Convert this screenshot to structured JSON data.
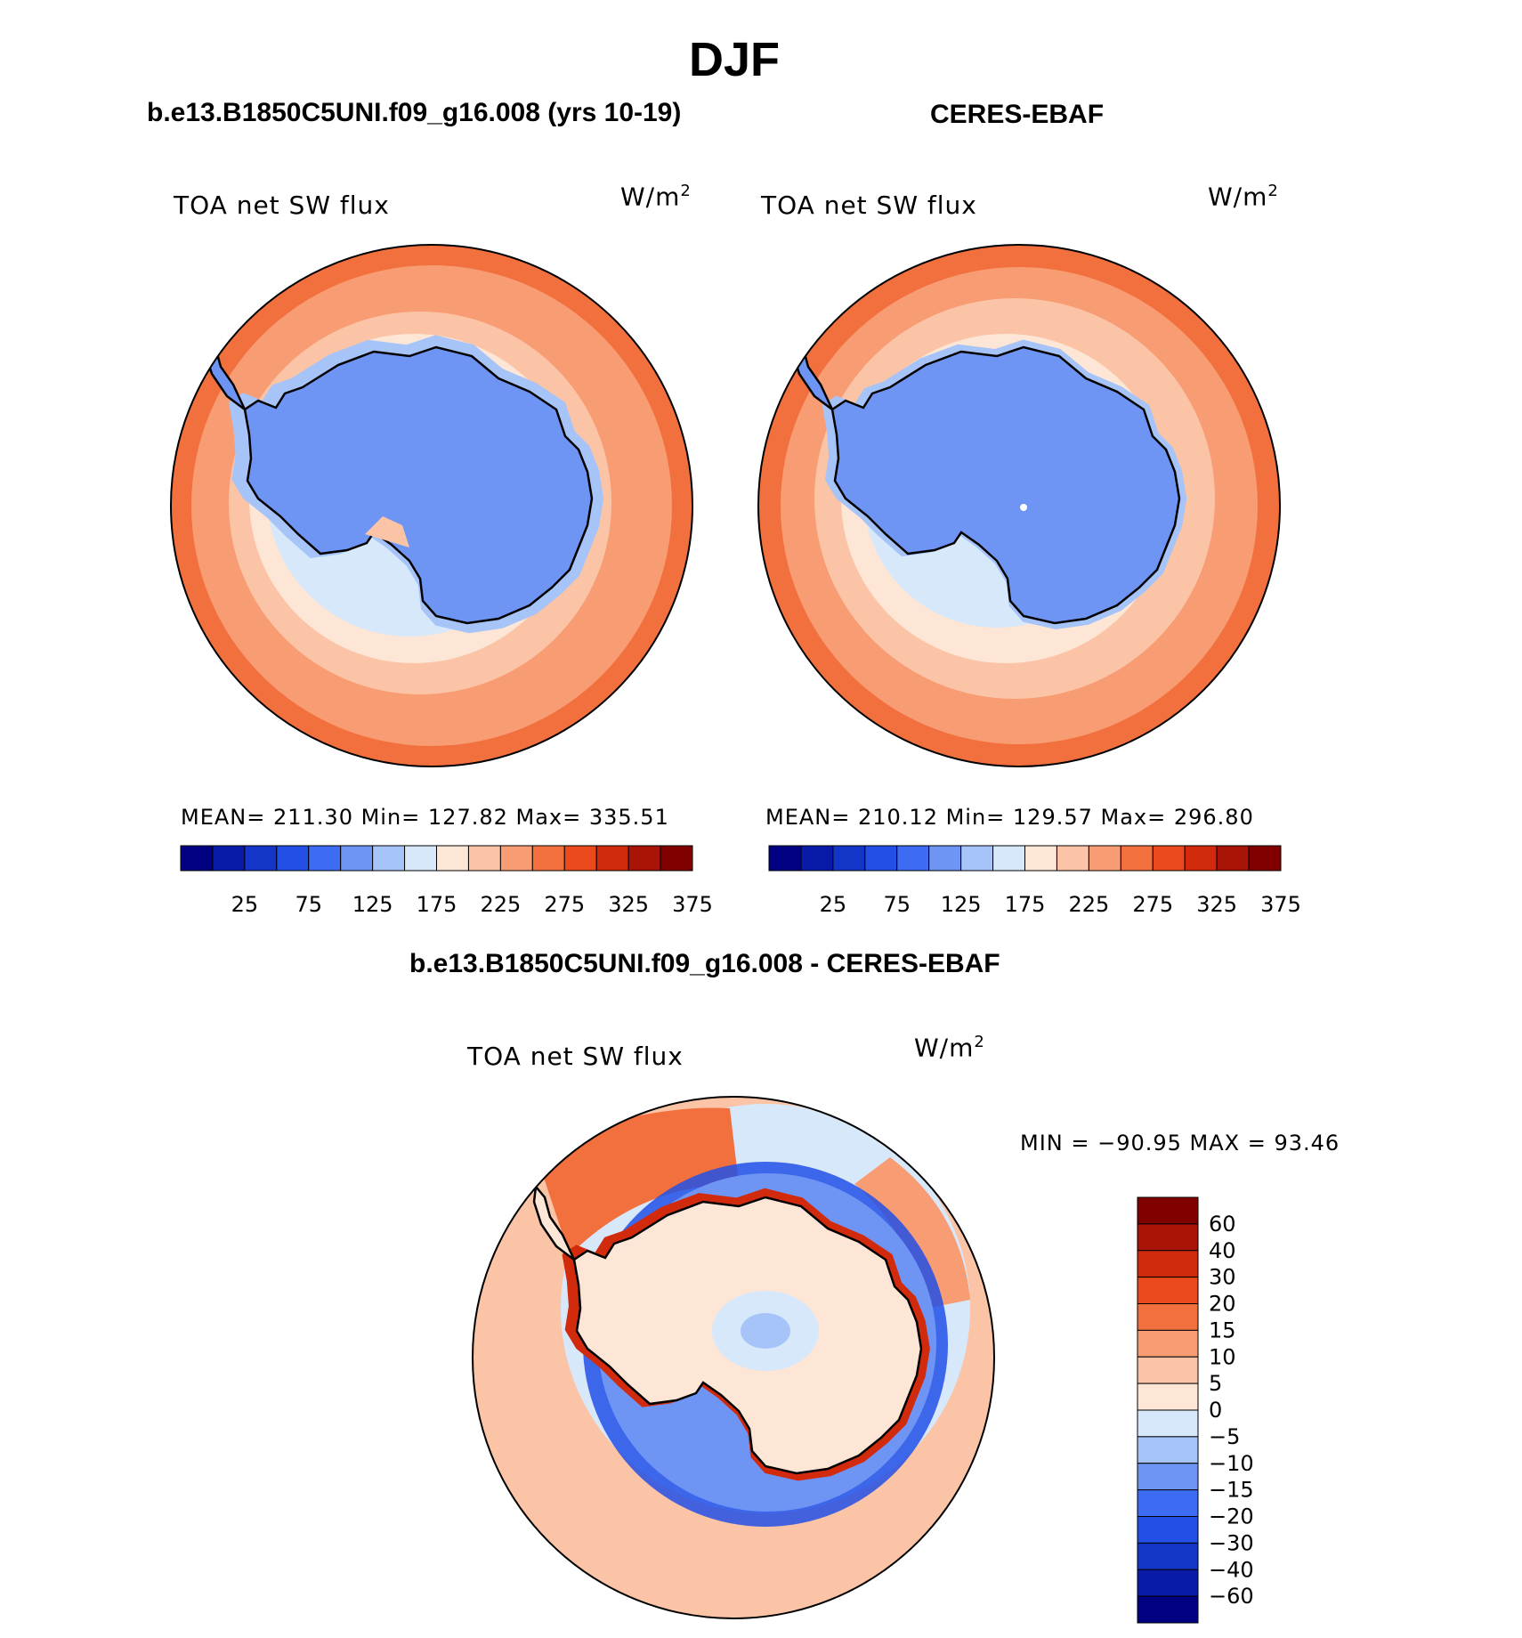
{
  "figure": {
    "title": "DJF",
    "panel_left": {
      "title": "b.e13.B1850C5UNI.f09_g16.008 (yrs 10-19)",
      "label": "TOA net SW flux",
      "units_base": "W/m",
      "units_exp": "2",
      "stats": "MEAN= 211.30   Min= 127.82   Max= 335.51"
    },
    "panel_right": {
      "title": "CERES-EBAF",
      "label": "TOA net SW flux",
      "units_base": "W/m",
      "units_exp": "2",
      "stats": "MEAN= 210.12   Min= 129.57   Max= 296.80"
    },
    "panel_diff": {
      "title": "b.e13.B1850C5UNI.f09_g16.008 - CERES-EBAF",
      "label": "TOA net SW flux",
      "units_base": "W/m",
      "units_exp": "2",
      "stats": "MIN = −90.95 MAX =   93.46"
    }
  },
  "chart_data": [
    {
      "type": "heatmap",
      "projection": "south polar stereographic",
      "title": "b.e13.B1850C5UNI.f09_g16.008 (yrs 10-19)",
      "variable": "TOA net SW flux",
      "units": "W/m2",
      "mean": 211.3,
      "min": 127.82,
      "max": 335.51,
      "colorbar_ticks": [
        "25",
        "75",
        "125",
        "175",
        "225",
        "275",
        "325",
        "375"
      ],
      "colorbar_colors": [
        "#000080",
        "#0a1aa8",
        "#1436c8",
        "#2250e6",
        "#3d6cf2",
        "#6f95f4",
        "#a6c4f8",
        "#d8e8fb",
        "#fde6d6",
        "#fbc4a6",
        "#f89c74",
        "#f2703e",
        "#ea4a1c",
        "#d22a0c",
        "#a81408",
        "#800000"
      ]
    },
    {
      "type": "heatmap",
      "projection": "south polar stereographic",
      "title": "CERES-EBAF",
      "variable": "TOA net SW flux",
      "units": "W/m2",
      "mean": 210.12,
      "min": 129.57,
      "max": 296.8,
      "colorbar_ticks": [
        "25",
        "75",
        "125",
        "175",
        "225",
        "275",
        "325",
        "375"
      ],
      "colorbar_colors": [
        "#000080",
        "#0a1aa8",
        "#1436c8",
        "#2250e6",
        "#3d6cf2",
        "#6f95f4",
        "#a6c4f8",
        "#d8e8fb",
        "#fde6d6",
        "#fbc4a6",
        "#f89c74",
        "#f2703e",
        "#ea4a1c",
        "#d22a0c",
        "#a81408",
        "#800000"
      ]
    },
    {
      "type": "heatmap",
      "projection": "south polar stereographic",
      "title": "b.e13.B1850C5UNI.f09_g16.008 - CERES-EBAF",
      "variable": "TOA net SW flux",
      "units": "W/m2",
      "min": -90.95,
      "max": 93.46,
      "colorbar_ticks": [
        "60",
        "40",
        "30",
        "20",
        "15",
        "10",
        "5",
        "0",
        "−5",
        "−10",
        "−15",
        "−20",
        "−30",
        "−40",
        "−60"
      ],
      "colorbar_colors": [
        "#800000",
        "#a81408",
        "#d22a0c",
        "#ea4a1c",
        "#f2703e",
        "#f89c74",
        "#fbc4a6",
        "#fde6d6",
        "#d8e8fb",
        "#a6c4f8",
        "#6f95f4",
        "#3d6cf2",
        "#2250e6",
        "#1436c8",
        "#0a1aa8",
        "#000080"
      ]
    }
  ]
}
